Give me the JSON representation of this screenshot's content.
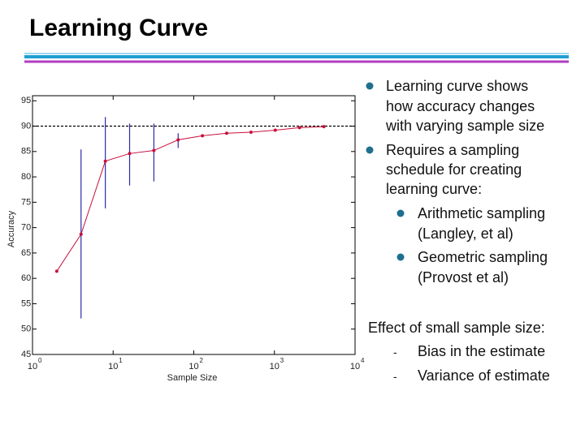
{
  "title": "Learning Curve",
  "bullets": [
    {
      "lines": [
        "Learning curve shows",
        "how accuracy changes",
        "with varying sample size"
      ]
    },
    {
      "lines": [
        "Requires a sampling",
        "schedule for creating",
        "learning curve:"
      ]
    }
  ],
  "sub_bullets": [
    {
      "lines": [
        "Arithmetic sampling",
        "(Langley, et al)"
      ]
    },
    {
      "lines": [
        "Geometric sampling",
        "(Provost et al)"
      ]
    }
  ],
  "effect": {
    "heading": "Effect of small sample size:",
    "items": [
      {
        "dash": "-",
        "text": "Bias in the estimate"
      },
      {
        "dash": "-",
        "text": "Variance of estimate"
      }
    ]
  },
  "chart_data": {
    "type": "line",
    "xlabel": "Sample Size",
    "ylabel": "Accuracy",
    "x": [
      2,
      4,
      8,
      16,
      32,
      64,
      128,
      256,
      512,
      1024,
      2048,
      4096
    ],
    "series": [
      {
        "color": "#c8103c",
        "error_color": "#2a2aa8",
        "values": [
          61.4,
          68.7,
          83.1,
          84.6,
          85.2,
          87.3,
          88.1,
          88.6,
          88.8,
          89.2,
          89.7,
          89.9
        ],
        "lower": [
          null,
          52.1,
          73.8,
          78.3,
          79.1,
          85.7,
          null,
          null,
          null,
          null,
          null,
          null
        ],
        "upper": [
          null,
          85.4,
          91.8,
          90.5,
          90.5,
          88.6,
          null,
          null,
          null,
          null,
          null,
          null
        ]
      }
    ],
    "hline": 90,
    "xscale": "log",
    "xlim": [
      1,
      10000
    ],
    "ylim": [
      45,
      96
    ],
    "xticks": [
      {
        "value": 1,
        "label": "10",
        "exponent": "0"
      },
      {
        "value": 10,
        "label": "10",
        "exponent": "1"
      },
      {
        "value": 100,
        "label": "10",
        "exponent": "2"
      },
      {
        "value": 1000,
        "label": "10",
        "exponent": "3"
      },
      {
        "value": 10000,
        "label": "10",
        "exponent": "4"
      }
    ],
    "yticks": [
      45,
      50,
      55,
      60,
      65,
      70,
      75,
      80,
      85,
      90,
      95
    ]
  }
}
